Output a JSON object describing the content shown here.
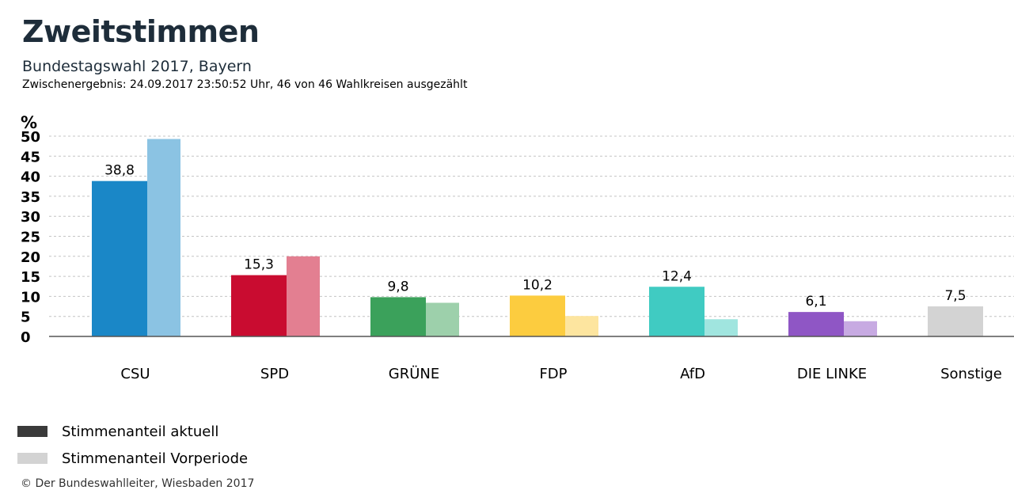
{
  "header": {
    "title": "Zweitstimmen",
    "subtitle": "Bundestagswahl 2017, Bayern",
    "meta": "Zwischenergebnis: 24.09.2017 23:50:52 Uhr, 46 von 46 Wahlkreisen ausgezählt"
  },
  "legend": {
    "current_label": "Stimmenanteil aktuell",
    "current_color": "#3a3a3a",
    "previous_label": "Stimmenanteil Vorperiode",
    "previous_color": "#d3d3d3"
  },
  "footer": {
    "copyright": "© Der Bundeswahlleiter, Wiesbaden 2017"
  },
  "chart_data": {
    "type": "bar",
    "ylabel": "%",
    "ylim": [
      0,
      50
    ],
    "yticks": [
      0,
      5,
      10,
      15,
      20,
      25,
      30,
      35,
      40,
      45,
      50
    ],
    "grid": true,
    "legend_position": "bottom-left",
    "categories": [
      "CSU",
      "SPD",
      "GRÜNE",
      "FDP",
      "AfD",
      "DIE LINKE",
      "Sonstige"
    ],
    "series": [
      {
        "name": "Stimmenanteil aktuell",
        "values": [
          38.8,
          15.3,
          9.8,
          10.2,
          12.4,
          6.1,
          7.5
        ],
        "labels": [
          "38,8",
          "15,3",
          "9,8",
          "10,2",
          "12,4",
          "6,1",
          "7,5"
        ]
      },
      {
        "name": "Stimmenanteil Vorperiode",
        "values": [
          49.3,
          20.0,
          8.4,
          5.1,
          4.3,
          3.8,
          null
        ]
      }
    ],
    "colors": {
      "current": [
        "#1a87c7",
        "#c90c30",
        "#3ba15b",
        "#fccc3f",
        "#40cbc2",
        "#8f56c5",
        "#d3d3d3"
      ],
      "previous": [
        "#8bc3e3",
        "#e37f91",
        "#9dd0ab",
        "#fde59f",
        "#a0e5df",
        "#c7aae2",
        "#e8e8e8"
      ]
    }
  }
}
